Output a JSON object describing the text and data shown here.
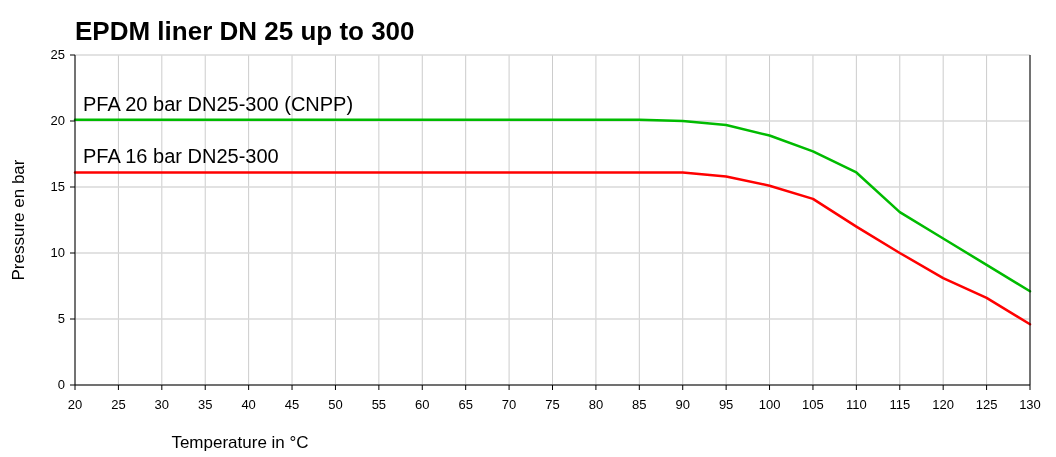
{
  "chart_data": {
    "type": "line",
    "title": "EPDM liner DN 25 up to 300",
    "xlabel": "Temperature in °C",
    "ylabel": "Pressure en bar",
    "x": [
      20,
      25,
      30,
      35,
      40,
      45,
      50,
      55,
      60,
      65,
      70,
      75,
      80,
      85,
      90,
      95,
      100,
      105,
      110,
      115,
      120,
      125,
      130
    ],
    "series": [
      {
        "name": "PFA 20 bar DN25-300 (CNPP)",
        "color": "#00bb00",
        "values": [
          20.1,
          20.1,
          20.1,
          20.1,
          20.1,
          20.1,
          20.1,
          20.1,
          20.1,
          20.1,
          20.1,
          20.1,
          20.1,
          20.1,
          20,
          19.7,
          18.9,
          17.7,
          16.1,
          13.1,
          11.1,
          9.1,
          7.1
        ]
      },
      {
        "name": "PFA 16 bar DN25-300",
        "color": "#ff0000",
        "values": [
          16.1,
          16.1,
          16.1,
          16.1,
          16.1,
          16.1,
          16.1,
          16.1,
          16.1,
          16.1,
          16.1,
          16.1,
          16.1,
          16.1,
          16.1,
          15.8,
          15.1,
          14.1,
          12,
          10,
          8.1,
          6.6,
          4.6
        ]
      }
    ],
    "xlim": [
      20,
      130
    ],
    "xticks": [
      20,
      25,
      30,
      35,
      40,
      45,
      50,
      55,
      60,
      65,
      70,
      75,
      80,
      85,
      90,
      95,
      100,
      105,
      110,
      115,
      120,
      125,
      130
    ],
    "ylim": [
      0,
      25
    ],
    "yticks": [
      0,
      5,
      10,
      15,
      20,
      25
    ],
    "grid": true,
    "line_style": "solid",
    "marker": "none"
  }
}
